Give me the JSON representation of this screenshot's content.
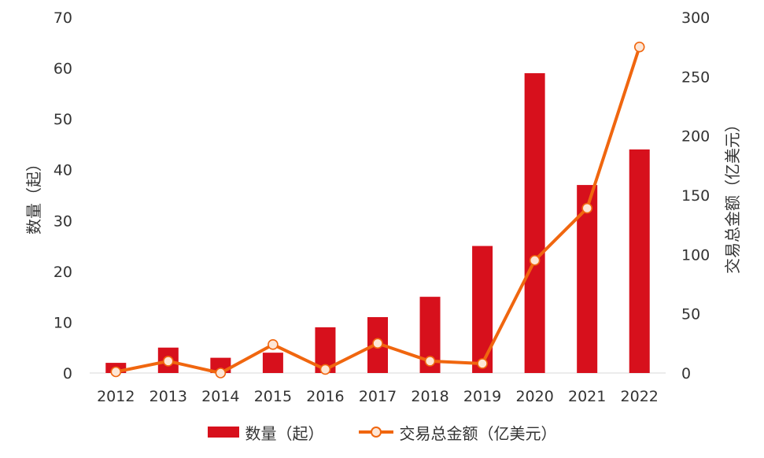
{
  "chart_data": {
    "type": "bar+line",
    "categories": [
      "2012",
      "2013",
      "2014",
      "2015",
      "2016",
      "2017",
      "2018",
      "2019",
      "2020",
      "2021",
      "2022"
    ],
    "series": [
      {
        "name": "数量（起）",
        "type": "bar",
        "axis": "left",
        "values": [
          2,
          5,
          3,
          4,
          9,
          11,
          15,
          25,
          59,
          37,
          44
        ],
        "color": "#d7101c"
      },
      {
        "name": "交易总金额（亿美元）",
        "type": "line",
        "axis": "right",
        "values": [
          1,
          10,
          0,
          24,
          3,
          25,
          10,
          8,
          95,
          139,
          275
        ],
        "color": "#f0660f",
        "marker_fill": "#fde6d6"
      }
    ],
    "ylabel": "数量（起）",
    "y2label": "交易总金额（亿美元）",
    "ylim": [
      0,
      70
    ],
    "y_ticks": [
      "0",
      "10",
      "20",
      "30",
      "40",
      "50",
      "60",
      "70"
    ],
    "y2lim": [
      0,
      300
    ],
    "y2_ticks": [
      "0",
      "50",
      "100",
      "150",
      "200",
      "250",
      "300"
    ],
    "grid": false,
    "legend_position": "bottom"
  }
}
